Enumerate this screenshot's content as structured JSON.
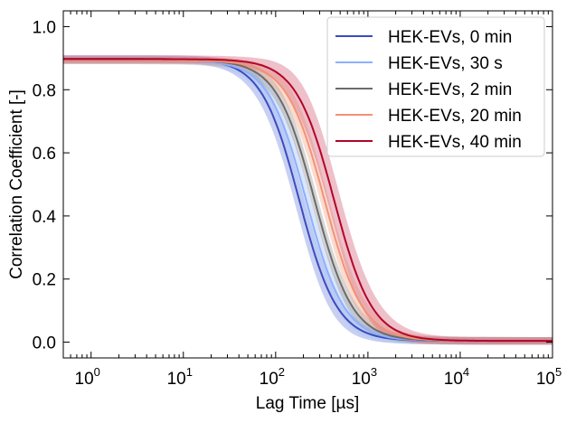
{
  "chart_data": {
    "type": "line",
    "xlabel": "Lag Time [µs]",
    "ylabel": "Correlation Coefficient [-]",
    "xscale": "log",
    "xlim": [
      0.5,
      100000
    ],
    "ylim": [
      -0.05,
      1.05
    ],
    "xticks": [
      {
        "value": 1,
        "base": "10",
        "exp": "0"
      },
      {
        "value": 10,
        "base": "10",
        "exp": "1"
      },
      {
        "value": 100,
        "base": "10",
        "exp": "2"
      },
      {
        "value": 1000,
        "base": "10",
        "exp": "3"
      },
      {
        "value": 10000,
        "base": "10",
        "exp": "4"
      },
      {
        "value": 100000,
        "base": "10",
        "exp": "5"
      }
    ],
    "yticks": [
      "0.0",
      "0.2",
      "0.4",
      "0.6",
      "0.8",
      "1.0"
    ],
    "grid": false,
    "legend_position": "top-right",
    "series": [
      {
        "name": "HEK-EVs, 0 min",
        "color": "#3b4cc0",
        "band_color": "#7b8fe0",
        "x50": 180,
        "band": 0.05,
        "x": [
          0.5,
          1,
          2,
          5,
          10,
          20,
          50,
          100,
          200,
          500,
          1000,
          2000,
          5000,
          10000,
          50000,
          100000
        ],
        "y": [
          0.895,
          0.898,
          0.893,
          0.885,
          0.874,
          0.853,
          0.76,
          0.58,
          0.33,
          0.085,
          0.02,
          0.005,
          0.006,
          0.006,
          0.004,
          0.004
        ]
      },
      {
        "name": "HEK-EVs, 30 s",
        "color": "#8db0fe",
        "band_color": "#a9c3f5",
        "x50": 215,
        "band": 0.05,
        "x": [
          0.5,
          1,
          2,
          5,
          10,
          20,
          50,
          100,
          200,
          500,
          1000,
          2000,
          5000,
          10000,
          50000,
          100000
        ],
        "y": [
          0.89,
          0.893,
          0.889,
          0.882,
          0.872,
          0.856,
          0.785,
          0.63,
          0.39,
          0.11,
          0.03,
          0.008,
          0.006,
          0.006,
          0.004,
          0.004
        ]
      },
      {
        "name": "HEK-EVs, 2 min",
        "color": "#6b6b6b",
        "band_color": "#9a9a9a",
        "x50": 265,
        "band": 0.03,
        "x": [
          0.5,
          1,
          2,
          5,
          10,
          20,
          50,
          100,
          200,
          500,
          1000,
          2000,
          5000,
          10000,
          50000,
          100000
        ],
        "y": [
          0.888,
          0.894,
          0.891,
          0.885,
          0.877,
          0.862,
          0.805,
          0.685,
          0.46,
          0.15,
          0.045,
          0.012,
          0.006,
          0.006,
          0.004,
          0.004
        ]
      },
      {
        "name": "HEK-EVs, 20 min",
        "color": "#f29274",
        "band_color": "#f4a98f",
        "x50": 340,
        "band": 0.04,
        "x": [
          0.5,
          1,
          2,
          5,
          10,
          20,
          50,
          100,
          200,
          500,
          1000,
          2000,
          5000,
          10000,
          50000,
          100000
        ],
        "y": [
          0.886,
          0.893,
          0.891,
          0.886,
          0.88,
          0.868,
          0.825,
          0.73,
          0.54,
          0.21,
          0.07,
          0.018,
          0.007,
          0.006,
          0.004,
          0.004
        ]
      },
      {
        "name": "HEK-EVs, 40 min",
        "color": "#b40426",
        "band_color": "#d46a80",
        "x50": 430,
        "band": 0.07,
        "x": [
          0.5,
          1,
          2,
          5,
          10,
          20,
          50,
          100,
          200,
          500,
          1000,
          2000,
          5000,
          10000,
          50000,
          100000
        ],
        "y": [
          0.888,
          0.897,
          0.895,
          0.89,
          0.885,
          0.875,
          0.842,
          0.768,
          0.6,
          0.27,
          0.1,
          0.028,
          0.008,
          0.006,
          0.004,
          0.004
        ]
      }
    ]
  }
}
